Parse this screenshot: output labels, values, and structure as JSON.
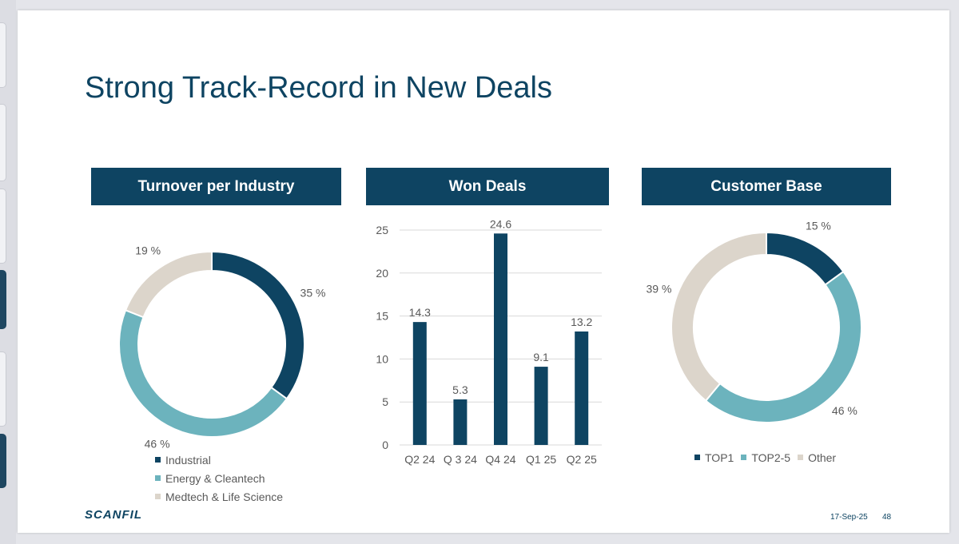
{
  "slide": {
    "title": "Strong Track-Record in New Deals",
    "logo": "SCANFIL",
    "date": "17-Sep-25",
    "page_number": "48"
  },
  "colors": {
    "dark_blue": "#0e4462",
    "teal": "#6cb3bd",
    "beige": "#dcd5cb",
    "panel_header": "#0e4462"
  },
  "chart_data": [
    {
      "type": "pie",
      "title": "Turnover per Industry",
      "donut": true,
      "labels": [
        "Industrial",
        "Energy & Cleantech",
        "Medtech & Life Science"
      ],
      "values": [
        35,
        46,
        19
      ],
      "data_labels": [
        "35 %",
        "46 %",
        "19 %"
      ],
      "colors": [
        "#0e4462",
        "#6cb3bd",
        "#dcd5cb"
      ],
      "legend": "bottom"
    },
    {
      "type": "bar",
      "title": "Won Deals",
      "categories": [
        "Q2 24",
        "Q 3 24",
        "Q4 24",
        "Q1 25",
        "Q2 25"
      ],
      "values": [
        14.3,
        5.3,
        24.6,
        9.1,
        13.2
      ],
      "data_labels": [
        "14.3",
        "5.3",
        "24.6",
        "9.1",
        "13.2"
      ],
      "ylim": [
        0,
        25
      ],
      "yticks": [
        0,
        5,
        10,
        15,
        20,
        25
      ],
      "ytick_labels": [
        "0",
        "5",
        "10",
        "15",
        "20",
        "25"
      ],
      "grid": true,
      "color": "#0e4462"
    },
    {
      "type": "pie",
      "title": "Customer Base",
      "donut": true,
      "labels": [
        "TOP1",
        "TOP2-5",
        "Other"
      ],
      "values": [
        15,
        46,
        39
      ],
      "data_labels": [
        "15 %",
        "46 %",
        "39 %"
      ],
      "colors": [
        "#0e4462",
        "#6cb3bd",
        "#dcd5cb"
      ],
      "legend": "bottom"
    }
  ]
}
